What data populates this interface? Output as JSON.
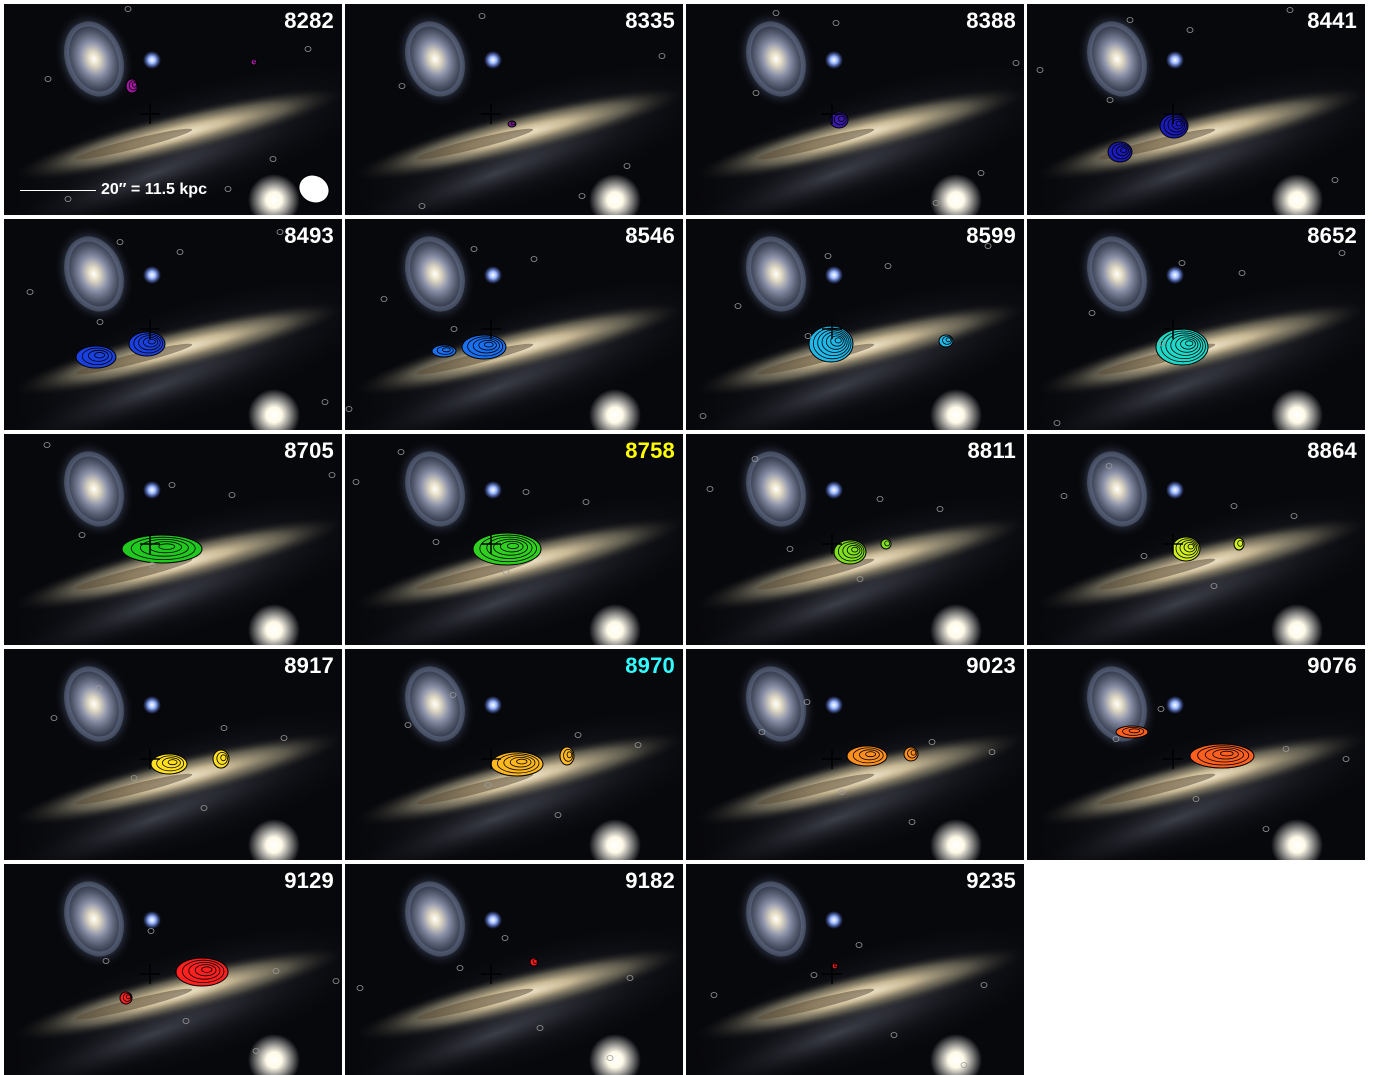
{
  "panels": [
    {
      "label": "8282",
      "label_color": "#ffffff",
      "contour_color": "#a01aa0"
    },
    {
      "label": "8335",
      "label_color": "#ffffff",
      "contour_color": "#7a1a90"
    },
    {
      "label": "8388",
      "label_color": "#ffffff",
      "contour_color": "#3a1aa8"
    },
    {
      "label": "8441",
      "label_color": "#ffffff",
      "contour_color": "#1a1ab8"
    },
    {
      "label": "8493",
      "label_color": "#ffffff",
      "contour_color": "#1a40e0"
    },
    {
      "label": "8546",
      "label_color": "#ffffff",
      "contour_color": "#1a70f0"
    },
    {
      "label": "8599",
      "label_color": "#ffffff",
      "contour_color": "#20b8e8"
    },
    {
      "label": "8652",
      "label_color": "#ffffff",
      "contour_color": "#20d8c8"
    },
    {
      "label": "8705",
      "label_color": "#ffffff",
      "contour_color": "#20c820"
    },
    {
      "label": "8758",
      "label_color": "#ffff00",
      "contour_color": "#30d020"
    },
    {
      "label": "8811",
      "label_color": "#ffffff",
      "contour_color": "#80e020"
    },
    {
      "label": "8864",
      "label_color": "#ffffff",
      "contour_color": "#d0f020"
    },
    {
      "label": "8917",
      "label_color": "#ffffff",
      "contour_color": "#ffe020"
    },
    {
      "label": "8970",
      "label_color": "#30ffff",
      "contour_color": "#ffb820"
    },
    {
      "label": "9023",
      "label_color": "#ffffff",
      "contour_color": "#ff9020"
    },
    {
      "label": "9076",
      "label_color": "#ffffff",
      "contour_color": "#ff6020"
    },
    {
      "label": "9129",
      "label_color": "#ffffff",
      "contour_color": "#ff2020"
    },
    {
      "label": "9182",
      "label_color": "#ffffff",
      "contour_color": "#ff1a1a"
    },
    {
      "label": "9235",
      "label_color": "#ffffff",
      "contour_color": "#e01a1a"
    }
  ],
  "scale_bar": {
    "label": "20″ = 11.5 kpc"
  }
}
